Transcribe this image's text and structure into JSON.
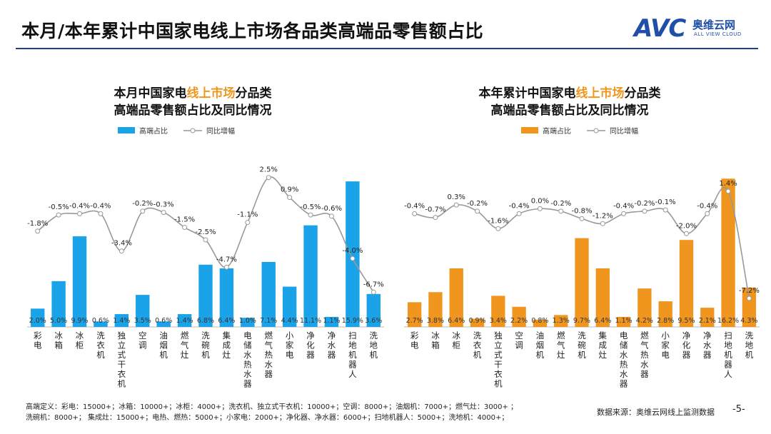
{
  "header": {
    "title": "本月/本年累计中国家电线上市场各品类高端品零售额占比",
    "logo_mark": "AVC",
    "logo_cn": "奥维云网",
    "logo_en": "ALL VIEW CLOUD"
  },
  "colors": {
    "blue": "#1aa3e8",
    "orange": "#f0961e",
    "line": "#999999",
    "highlight": "#f0961e",
    "rule": "#1f3f8f"
  },
  "chart_data": [
    {
      "type": "bar+line",
      "title_parts": [
        "本月中国家电",
        "线上市场",
        "分品类"
      ],
      "title_line2": "高端品零售额占比及同比情况",
      "legend": {
        "bar": "高端占比",
        "line": "同比增幅"
      },
      "categories": [
        "彩电",
        "冰箱",
        "冰柜",
        "洗衣机",
        "独立式干衣机",
        "空调",
        "油烟机",
        "燃气灶",
        "洗碗机",
        "集成灶",
        "电储水热水器",
        "燃气热水器",
        "小家电",
        "净化器",
        "净水器",
        "扫地机器人",
        "洗地机"
      ],
      "bar_values": [
        2.0,
        5.0,
        9.9,
        0.6,
        1.4,
        3.5,
        0.6,
        1.4,
        6.8,
        6.4,
        1.0,
        7.1,
        4.4,
        11.1,
        1.1,
        15.9,
        3.6
      ],
      "bar_labels": [
        "2.0%",
        "5.0%",
        "9.9%",
        "0.6%",
        "1.4%",
        "3.5%",
        "0.6%",
        "1.4%",
        "6.8%",
        "6.4%",
        "1.0%",
        "7.1%",
        "4.4%",
        "11.1%",
        "1.1%",
        "15.9%",
        "3.6%"
      ],
      "line_values": [
        -1.8,
        -0.5,
        -0.4,
        -0.4,
        -3.4,
        -0.2,
        -0.3,
        -1.5,
        -2.5,
        -4.7,
        -1.1,
        2.5,
        0.9,
        -0.5,
        -0.6,
        -4.0,
        -6.7
      ],
      "line_labels": [
        "-1.8%",
        "-0.5%",
        "-0.4%",
        "-0.4%",
        "-3.4%",
        "-0.2%",
        "-0.3%",
        "-1.5%",
        "-2.5%",
        "-4.7%",
        "-1.1%",
        "2.5%",
        "0.9%",
        "-0.5%",
        "-0.6%",
        "-4.0%",
        "-6.7%"
      ],
      "bar_ylim": [
        0,
        17
      ],
      "line_ylim": [
        -8,
        3
      ]
    },
    {
      "type": "bar+line",
      "title_parts": [
        "本年累计中国家电",
        "线上市场",
        "分品类"
      ],
      "title_line2": "高端品零售额占比及同比情况",
      "legend": {
        "bar": "高端占比",
        "line": "同比增幅"
      },
      "categories": [
        "彩电",
        "冰箱",
        "冰柜",
        "洗衣机",
        "独立式干衣机",
        "空调",
        "油烟机",
        "燃气灶",
        "洗碗机",
        "集成灶",
        "电储水热水器",
        "燃气热水器",
        "小家电",
        "净化器",
        "净水器",
        "扫地机器人",
        "洗地机"
      ],
      "bar_values": [
        2.7,
        3.8,
        6.4,
        0.9,
        3.4,
        2.2,
        0.8,
        1.3,
        9.7,
        6.4,
        1.1,
        4.2,
        2.8,
        9.5,
        2.1,
        16.2,
        4.3
      ],
      "bar_labels": [
        "2.7%",
        "3.8%",
        "6.4%",
        "0.9%",
        "3.4%",
        "2.2%",
        "0.8%",
        "1.3%",
        "9.7%",
        "6.4%",
        "1.1%",
        "4.2%",
        "2.8%",
        "9.5%",
        "2.1%",
        "16.2%",
        "4.3%"
      ],
      "line_values": [
        -0.4,
        -0.7,
        0.3,
        -0.2,
        -1.6,
        -0.4,
        0.0,
        -0.2,
        -0.8,
        -1.2,
        -0.4,
        -0.2,
        -0.1,
        -2.0,
        -0.4,
        1.4,
        -7.2
      ],
      "line_labels": [
        "-0.4%",
        "-0.7%",
        "0.3%",
        "-0.2%",
        "-1.6%",
        "-0.4%",
        "0.0%",
        "-0.2%",
        "-0.8%",
        "-1.2%",
        "-0.4%",
        "-0.2%",
        "-0.1%",
        "-2.0%",
        "-0.4%",
        "1.4%",
        "-7.2%"
      ],
      "bar_ylim": [
        0,
        17
      ],
      "line_ylim": [
        -8,
        3
      ]
    }
  ],
  "footnote": {
    "line1": "高端定义：彩电：15000+；冰箱：10000+；冰柜：4000+；洗衣机、独立式干衣机：10000+；空调：8000+；油烟机：7000+；燃气灶：3000+ ；",
    "line2": "洗碗机：8000+；  集成灶：15000+；电热、燃热：5000+；小家电：2000+；净化器、净水器：6000+；扫地机器人：5000+；洗地机：4000+；"
  },
  "source": "数据来源：奥维云网线上监测数据",
  "page_number": "-5-"
}
